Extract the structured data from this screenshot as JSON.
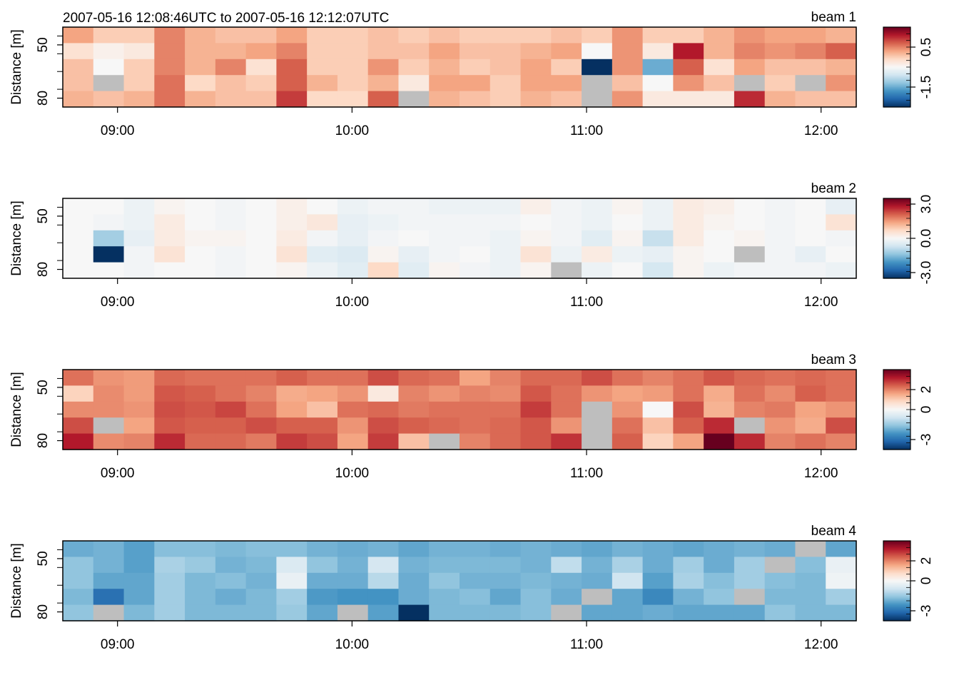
{
  "figure": {
    "title": "2007-05-16 12:08:46UTC to 2007-05-16 12:12:07UTC"
  },
  "colors": {
    "missing": "#bebebe",
    "palette": [
      "#053061",
      "#2166ac",
      "#4393c3",
      "#92c5de",
      "#d1e5f0",
      "#f7f7f7",
      "#fddbc7",
      "#f4a582",
      "#d6604d",
      "#b2182b",
      "#67001f"
    ]
  },
  "chart_data": [
    {
      "type": "heatmap",
      "label": "beam 1",
      "ylabel": "Distance [m]",
      "x_ticks": [
        "09:00",
        "10:00",
        "11:00",
        "12:00"
      ],
      "y_ticks": [
        "50",
        "80"
      ],
      "colorbar_ticks": [
        "-1.5",
        "0.5"
      ],
      "colorbar_range": [
        -2.5,
        1.5
      ],
      "x_times": [
        "08:52",
        "09:07",
        "09:22",
        "09:37",
        "09:52",
        "10:07",
        "10:22",
        "10:37",
        "10:52",
        "11:07",
        "11:22",
        "11:37",
        "11:52",
        "12:07"
      ],
      "x_range": [
        "08:46",
        "12:09"
      ],
      "y_range": [
        40,
        85
      ],
      "rows": [
        [
          0.3,
          0.0,
          0.0,
          0.5,
          0.2,
          0.1,
          0.1,
          0.3,
          0.0,
          0.0,
          0.1,
          0.0,
          0.1,
          0.0,
          0.0,
          0.0,
          0.1,
          0.0,
          0.4,
          0.0,
          0.0,
          0.2,
          0.4,
          0.3,
          0.3,
          0.2
        ],
        [
          -0.2,
          -0.4,
          -0.3,
          0.5,
          0.2,
          0.2,
          0.3,
          0.5,
          0.0,
          0.0,
          0.1,
          0.1,
          0.3,
          0.1,
          0.1,
          0.2,
          0.3,
          -0.5,
          0.4,
          -0.3,
          1.1,
          0.2,
          0.5,
          0.4,
          0.5,
          0.7
        ],
        [
          0.1,
          -0.5,
          0.0,
          0.5,
          0.2,
          0.5,
          -0.2,
          0.7,
          0.0,
          0.0,
          0.4,
          0.0,
          0.2,
          0.0,
          0.1,
          0.3,
          0.0,
          -2.5,
          0.4,
          -1.5,
          0.7,
          -0.2,
          0.3,
          0.1,
          0.1,
          0.2
        ],
        [
          0.1,
          null,
          0.0,
          0.6,
          -0.1,
          0.1,
          0.0,
          0.7,
          0.2,
          0.0,
          0.2,
          -0.3,
          0.3,
          0.3,
          0.0,
          0.3,
          0.3,
          null,
          0.1,
          -0.5,
          0.4,
          0.1,
          null,
          0.0,
          null,
          0.4
        ],
        [
          0.2,
          0.1,
          0.2,
          0.6,
          0.2,
          0.1,
          0.1,
          0.9,
          -0.1,
          -0.1,
          0.7,
          null,
          0.2,
          0.1,
          0.0,
          0.2,
          0.1,
          null,
          0.4,
          -0.3,
          -0.3,
          -0.3,
          1.0,
          0.2,
          0.1,
          0.1
        ]
      ]
    },
    {
      "type": "heatmap",
      "label": "beam 2",
      "ylabel": "Distance [m]",
      "x_ticks": [
        "09:00",
        "10:00",
        "11:00",
        "12:00"
      ],
      "y_ticks": [
        "50",
        "80"
      ],
      "colorbar_ticks": [
        "-3.0",
        "0.0",
        "3.0"
      ],
      "colorbar_range": [
        -3.5,
        3.5
      ],
      "x_times": [
        "08:52",
        "09:07",
        "09:22",
        "09:37",
        "09:52",
        "10:07",
        "10:22",
        "10:37",
        "10:52",
        "11:07",
        "11:22",
        "11:37",
        "11:52",
        "12:07"
      ],
      "x_range": [
        "08:46",
        "12:09"
      ],
      "y_range": [
        40,
        85
      ],
      "rows": [
        [
          0.0,
          0.0,
          -0.2,
          0.1,
          0.0,
          -0.1,
          0.0,
          0.2,
          0.0,
          -0.2,
          -0.1,
          -0.1,
          -0.2,
          -0.2,
          -0.2,
          0.2,
          -0.1,
          -0.2,
          0.1,
          -0.2,
          0.3,
          0.2,
          0.0,
          -0.1,
          0.0,
          -0.3
        ],
        [
          0.0,
          -0.1,
          -0.2,
          0.3,
          0.0,
          -0.1,
          0.0,
          0.2,
          0.4,
          -0.3,
          -0.2,
          -0.1,
          -0.1,
          -0.1,
          -0.1,
          0.0,
          -0.1,
          -0.2,
          0.0,
          -0.2,
          0.3,
          0.1,
          0.0,
          -0.1,
          0.0,
          0.5
        ],
        [
          0.0,
          -1.2,
          -0.3,
          0.3,
          0.1,
          0.1,
          0.0,
          0.3,
          -0.1,
          -0.3,
          -0.1,
          0.0,
          -0.1,
          -0.1,
          -0.2,
          0.1,
          -0.1,
          -0.4,
          0.1,
          -0.8,
          0.3,
          0.0,
          0.1,
          -0.1,
          0.0,
          -0.1
        ],
        [
          0.0,
          -3.5,
          -0.1,
          0.5,
          0.0,
          -0.1,
          0.0,
          0.5,
          -0.4,
          -0.5,
          0.1,
          -0.3,
          -0.1,
          0.0,
          -0.2,
          0.5,
          -0.2,
          0.3,
          -0.2,
          -0.3,
          0.1,
          0.0,
          null,
          -0.1,
          -0.3,
          0.0
        ],
        [
          0.0,
          0.0,
          -0.1,
          0.0,
          0.0,
          -0.1,
          0.0,
          0.1,
          -0.2,
          -0.4,
          0.7,
          -0.4,
          0.1,
          -0.1,
          -0.2,
          0.1,
          null,
          -0.2,
          0.0,
          -0.6,
          0.1,
          -0.2,
          -0.1,
          -0.1,
          -0.1,
          -0.2
        ]
      ]
    },
    {
      "type": "heatmap",
      "label": "beam 3",
      "ylabel": "Distance [m]",
      "x_ticks": [
        "09:00",
        "10:00",
        "11:00",
        "12:00"
      ],
      "y_ticks": [
        "2",
        "0",
        "-3"
      ],
      "y_ticks_note": "",
      "axis_ticks": [
        "50",
        "80"
      ],
      "colorbar_ticks": [
        "-3",
        "0",
        "2"
      ],
      "colorbar_range": [
        -4,
        4
      ],
      "x_times": [
        "08:52",
        "09:07",
        "09:22",
        "09:37",
        "09:52",
        "10:07",
        "10:22",
        "10:37",
        "10:52",
        "11:07",
        "11:22",
        "11:37",
        "11:52",
        "12:07"
      ],
      "x_range": [
        "08:46",
        "12:09"
      ],
      "y_range": [
        40,
        85
      ],
      "rows": [
        [
          2.2,
          1.8,
          1.7,
          2.3,
          2.2,
          2.2,
          2.2,
          2.4,
          2.2,
          2.2,
          2.6,
          2.3,
          2.2,
          1.6,
          2.0,
          2.3,
          2.3,
          2.6,
          2.2,
          2.0,
          2.2,
          2.5,
          2.3,
          2.2,
          2.3,
          2.2
        ],
        [
          0.9,
          1.9,
          1.7,
          2.5,
          2.4,
          2.2,
          2.0,
          1.5,
          1.6,
          1.8,
          0.4,
          2.0,
          1.8,
          2.0,
          1.9,
          2.5,
          2.2,
          1.8,
          1.6,
          1.7,
          2.2,
          1.5,
          2.2,
          1.9,
          2.4,
          2.2
        ],
        [
          1.9,
          1.9,
          1.8,
          2.6,
          2.5,
          2.7,
          2.2,
          1.6,
          1.2,
          2.2,
          2.3,
          2.1,
          2.2,
          2.2,
          2.2,
          2.8,
          2.2,
          null,
          1.8,
          0.0,
          2.6,
          1.4,
          2.0,
          2.1,
          1.6,
          1.8
        ],
        [
          2.6,
          null,
          1.6,
          2.5,
          2.4,
          2.4,
          2.6,
          2.4,
          2.4,
          1.8,
          2.6,
          2.4,
          2.3,
          2.2,
          2.3,
          2.5,
          1.8,
          null,
          2.2,
          1.2,
          2.4,
          3.0,
          null,
          1.8,
          1.5,
          2.6
        ],
        [
          3.2,
          1.9,
          2.0,
          3.0,
          2.3,
          2.3,
          2.1,
          2.8,
          2.6,
          1.6,
          2.8,
          1.2,
          null,
          2.0,
          2.3,
          2.5,
          2.9,
          null,
          2.4,
          0.9,
          1.6,
          4.0,
          3.0,
          2.0,
          2.2,
          2.0
        ]
      ]
    },
    {
      "type": "heatmap",
      "label": "beam 4",
      "ylabel": "Distance [m]",
      "x_ticks": [
        "09:00",
        "10:00",
        "11:00",
        "12:00"
      ],
      "y_ticks": [
        "50",
        "80"
      ],
      "colorbar_ticks": [
        "-3",
        "0",
        "2"
      ],
      "colorbar_range": [
        -4,
        4
      ],
      "x_times": [
        "08:52",
        "09:07",
        "09:22",
        "09:37",
        "09:52",
        "10:07",
        "10:22",
        "10:37",
        "10:52",
        "11:07",
        "11:22",
        "11:37",
        "11:52",
        "12:07"
      ],
      "x_range": [
        "08:46",
        "12:09"
      ],
      "y_range": [
        40,
        85
      ],
      "rows": [
        [
          -2.0,
          -1.9,
          -2.2,
          -1.7,
          -1.7,
          -1.8,
          -1.7,
          -1.7,
          -1.9,
          -2.0,
          -1.9,
          -2.1,
          -1.9,
          -1.9,
          -2.0,
          -1.9,
          -2.0,
          -2.1,
          -1.9,
          -2.0,
          -2.1,
          -2.0,
          -1.9,
          -2.0,
          null,
          -2.1
        ],
        [
          -1.6,
          -1.9,
          -2.2,
          -1.3,
          -1.5,
          -1.9,
          -1.8,
          -0.6,
          -1.6,
          -1.9,
          -0.7,
          -1.9,
          -1.8,
          -1.8,
          -1.8,
          -1.9,
          -1.0,
          -1.9,
          -1.3,
          -2.0,
          -1.4,
          -2.0,
          -1.4,
          null,
          -1.7,
          -0.3
        ],
        [
          -1.6,
          -2.1,
          -2.1,
          -1.4,
          -1.8,
          -1.7,
          -1.9,
          -0.3,
          -2.0,
          -2.0,
          -1.1,
          -2.0,
          -1.6,
          -1.9,
          -1.9,
          -1.8,
          -1.9,
          -2.0,
          -0.8,
          -2.2,
          -1.3,
          -1.7,
          -1.4,
          -1.7,
          -1.8,
          -0.2
        ],
        [
          -1.8,
          -3.0,
          -2.1,
          -1.4,
          -1.8,
          -2.0,
          -1.8,
          -1.4,
          -2.3,
          -2.4,
          -2.4,
          -2.0,
          -1.8,
          -1.7,
          -2.1,
          -1.7,
          -2.0,
          null,
          -2.1,
          -2.6,
          -1.9,
          -1.6,
          null,
          -1.8,
          -1.8,
          -1.4
        ],
        [
          -1.6,
          null,
          -1.8,
          -1.4,
          -1.8,
          -1.8,
          -1.8,
          -1.5,
          -2.1,
          null,
          -2.2,
          -4.0,
          -1.8,
          -1.8,
          -1.8,
          -1.7,
          null,
          -2.1,
          -2.1,
          -2.0,
          -2.1,
          -2.1,
          -2.1,
          -1.6,
          -1.8,
          -1.8
        ]
      ]
    }
  ]
}
